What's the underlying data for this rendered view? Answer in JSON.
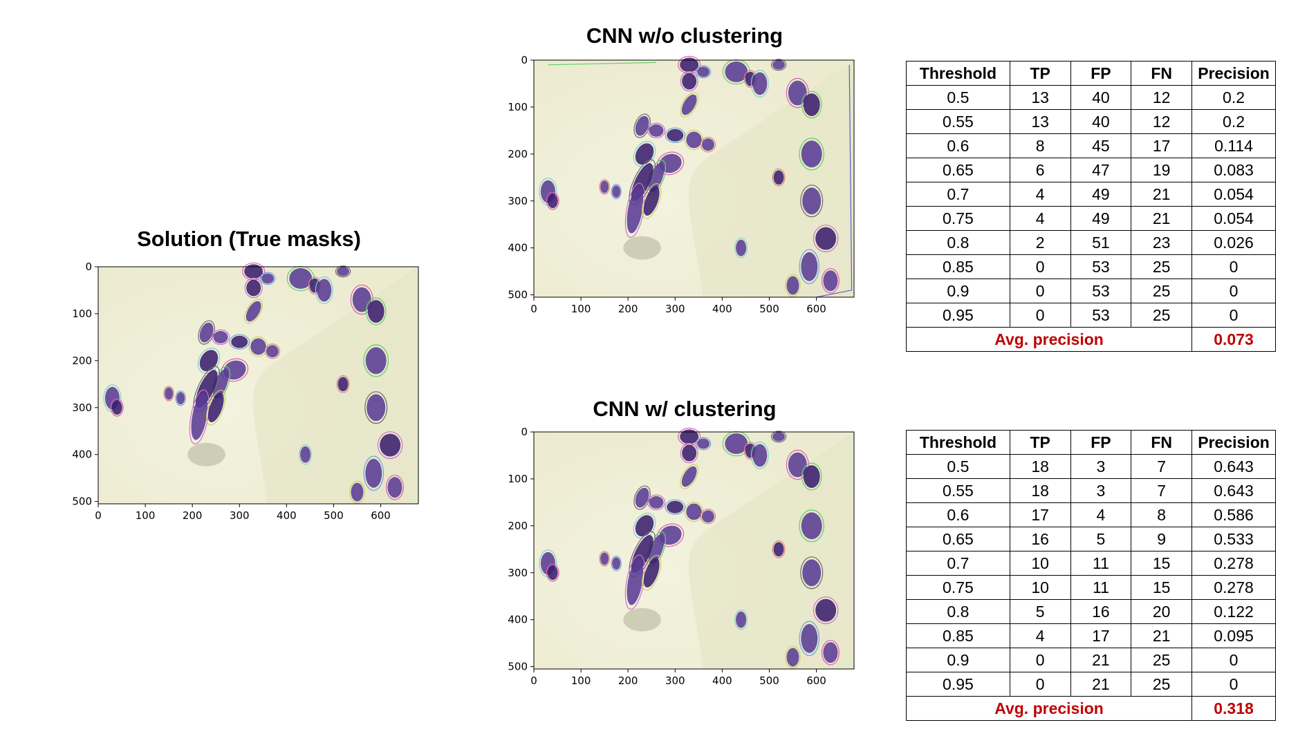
{
  "panels": {
    "truth": {
      "title": "Solution (True masks)"
    },
    "noclust": {
      "title": "CNN w/o clustering"
    },
    "clust": {
      "title": "CNN w/ clustering"
    }
  },
  "axes": {
    "truth": {
      "xticks": [
        "0",
        "100",
        "200",
        "300",
        "400",
        "500",
        "600"
      ],
      "yticks": [
        "0",
        "100",
        "200",
        "300",
        "400",
        "500"
      ]
    },
    "noclust": {
      "xticks": [
        "0",
        "100",
        "200",
        "300",
        "400",
        "500",
        "600"
      ],
      "yticks": [
        "0",
        "100",
        "200",
        "300",
        "400",
        "500"
      ]
    },
    "clust": {
      "xticks": [
        "0",
        "100",
        "200",
        "300",
        "400",
        "500",
        "600"
      ],
      "yticks": [
        "0",
        "100",
        "200",
        "300",
        "400",
        "500"
      ]
    }
  },
  "colors": {
    "nucleus": "#4b2f86",
    "background": "#ecebd0",
    "avg_text": "#c00000"
  },
  "tables": {
    "headers": [
      "Threshold",
      "TP",
      "FP",
      "FN",
      "Precision"
    ],
    "avg_label": "Avg. precision",
    "noclust": {
      "rows": [
        [
          "0.5",
          "13",
          "40",
          "12",
          "0.2"
        ],
        [
          "0.55",
          "13",
          "40",
          "12",
          "0.2"
        ],
        [
          "0.6",
          "8",
          "45",
          "17",
          "0.114"
        ],
        [
          "0.65",
          "6",
          "47",
          "19",
          "0.083"
        ],
        [
          "0.7",
          "4",
          "49",
          "21",
          "0.054"
        ],
        [
          "0.75",
          "4",
          "49",
          "21",
          "0.054"
        ],
        [
          "0.8",
          "2",
          "51",
          "23",
          "0.026"
        ],
        [
          "0.85",
          "0",
          "53",
          "25",
          "0"
        ],
        [
          "0.9",
          "0",
          "53",
          "25",
          "0"
        ],
        [
          "0.95",
          "0",
          "53",
          "25",
          "0"
        ]
      ],
      "avg_value": "0.073"
    },
    "clust": {
      "rows": [
        [
          "0.5",
          "18",
          "3",
          "7",
          "0.643"
        ],
        [
          "0.55",
          "18",
          "3",
          "7",
          "0.643"
        ],
        [
          "0.6",
          "17",
          "4",
          "8",
          "0.586"
        ],
        [
          "0.65",
          "16",
          "5",
          "9",
          "0.533"
        ],
        [
          "0.7",
          "10",
          "11",
          "15",
          "0.278"
        ],
        [
          "0.75",
          "10",
          "11",
          "15",
          "0.278"
        ],
        [
          "0.8",
          "5",
          "16",
          "20",
          "0.122"
        ],
        [
          "0.85",
          "4",
          "17",
          "21",
          "0.095"
        ],
        [
          "0.9",
          "0",
          "21",
          "25",
          "0"
        ],
        [
          "0.95",
          "0",
          "21",
          "25",
          "0"
        ]
      ],
      "avg_value": "0.318"
    }
  }
}
